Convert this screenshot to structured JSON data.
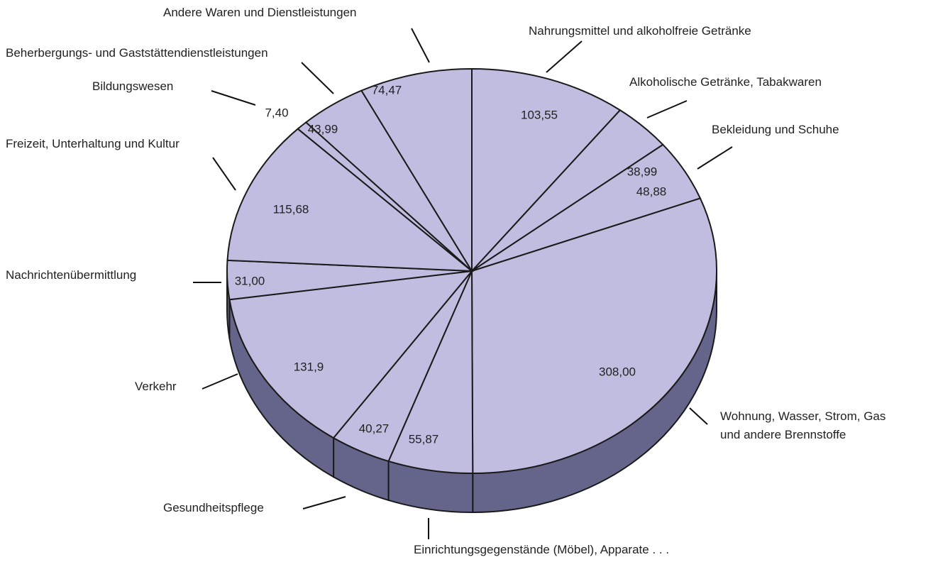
{
  "chart_data": {
    "type": "pie3d",
    "categories": [
      "Nahrungsmittel und alkoholfreie Getränke",
      "Alkoholische Getränke, Tabakwaren",
      "Bekleidung und Schuhe",
      "Wohnung, Wasser, Strom, Gas und andere Brennstoffe",
      "Einrichtungsgegenstände (Möbel), Apparate . . .",
      "Gesundheitspflege",
      "Verkehr",
      "Nachrichtenübermittlung",
      "Freizeit, Unterhaltung und Kultur",
      "Bildungswesen",
      "Beherbergungs- und Gaststättendienstleistungen",
      "Andere Waren und Dienstleistungen"
    ],
    "values": [
      103.55,
      38.99,
      48.88,
      308.0,
      55.87,
      40.27,
      131.9,
      31.0,
      115.68,
      7.4,
      43.99,
      74.47
    ],
    "value_labels": [
      "103,55",
      "38,99",
      "48,88",
      "308,00",
      "55,87",
      "40,27",
      "131,9",
      "31,00",
      "115,68",
      "7,40",
      "43,99",
      "74,47"
    ],
    "color": "#c0bde0",
    "side_color": "#65648a"
  }
}
